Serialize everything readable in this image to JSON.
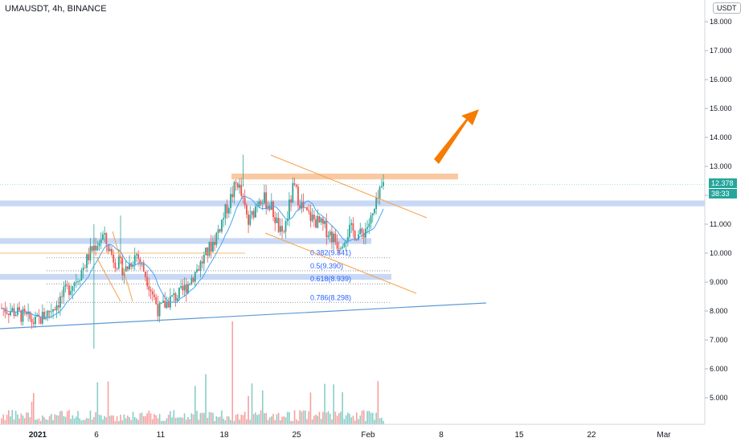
{
  "header": {
    "symbol_title": "UMAUSDT, 4h, BINANCE",
    "currency": "USDT"
  },
  "badges": {
    "last_price": "12.378",
    "countdown": "38:33"
  },
  "fib_labels": [
    "0.382(9.841)",
    "0.5(9.390)",
    "0.618(8.939)",
    "0.786(8.298)"
  ],
  "colors": {
    "up": "#26a69a",
    "down": "#ef5350",
    "zone": "#c8d8f5",
    "resistance": "#f9c9a2",
    "trend_orange": "#f7a04a",
    "trend_blue": "#5b9bd5",
    "arrow": "#f57c00",
    "ma": "#42a5f5"
  },
  "chart_data": {
    "type": "candlestick",
    "title": "UMAUSDT, 4h, BINANCE",
    "y_range": [
      4.0,
      18.6
    ],
    "y_ticks": [
      "18.000",
      "17.000",
      "16.000",
      "15.000",
      "14.000",
      "13.000",
      "12.000",
      "11.000",
      "10.000",
      "9.000",
      "8.000",
      "7.000",
      "6.000",
      "5.000"
    ],
    "x_ticks": [
      "2021",
      "6",
      "11",
      "18",
      "25",
      "Feb",
      "8",
      "15",
      "22",
      "Mar"
    ],
    "close_path": [
      8.1,
      8.0,
      7.8,
      7.6,
      7.9,
      8.3,
      8.8,
      9.3,
      10.1,
      10.6,
      9.8,
      9.4,
      10.0,
      9.1,
      8.0,
      8.4,
      8.6,
      9.2,
      9.8,
      10.5,
      11.5,
      12.5,
      11.0,
      12.0,
      11.6,
      10.5,
      12.3,
      11.4,
      11.1,
      10.8,
      10.3,
      10.8,
      10.6,
      11.2,
      12.4
    ],
    "support_zones": [
      11.75,
      10.45,
      9.2
    ],
    "resistance_zone": [
      12.55,
      12.75
    ],
    "fib_levels": [
      9.841,
      9.39,
      8.939,
      8.298
    ]
  }
}
